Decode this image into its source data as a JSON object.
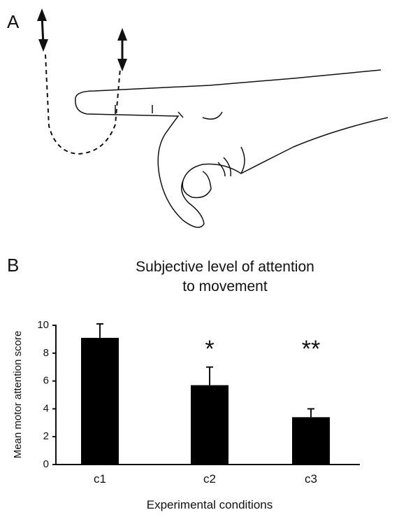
{
  "panels": {
    "a_label": "A",
    "b_label": "B"
  },
  "chart_data": {
    "type": "bar",
    "title": [
      "Subjective level of attention",
      "to movement"
    ],
    "x_label": "Experimental conditions",
    "y_label": "Mean motor attention score",
    "categories": [
      "c1",
      "c2",
      "c3"
    ],
    "values": [
      9.1,
      5.7,
      3.4
    ],
    "errors": [
      1.0,
      1.3,
      0.6
    ],
    "significance": [
      null,
      "*",
      "**"
    ],
    "color": "#000000",
    "ylim": [
      0,
      10
    ],
    "yticks": [
      0,
      2,
      4,
      6,
      8,
      10
    ],
    "grid": false
  }
}
